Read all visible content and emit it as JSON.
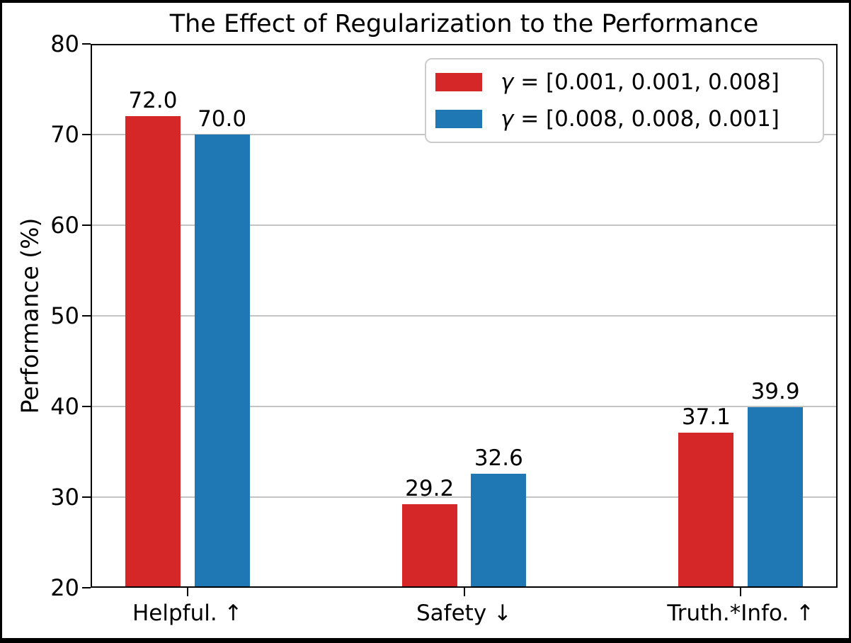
{
  "chart_data": {
    "type": "bar",
    "title": "The Effect of Regularization to the Performance",
    "ylabel": "Performance (%)",
    "xlabel": "",
    "categories": [
      "Helpful. ↑",
      "Safety ↓",
      "Truth.*Info. ↑"
    ],
    "series": [
      {
        "name": "γ = [0.001, 0.001, 0.008]",
        "legend_symbol": "γ",
        "legend_rest": " = [0.001, 0.001, 0.008]",
        "color": "#d62728",
        "values": [
          72.0,
          29.2,
          37.1
        ],
        "value_labels": [
          "72.0",
          "29.2",
          "37.1"
        ]
      },
      {
        "name": "γ = [0.008, 0.008, 0.001]",
        "legend_symbol": "γ",
        "legend_rest": " = [0.008, 0.008, 0.001]",
        "color": "#1f77b4",
        "values": [
          70.0,
          32.6,
          39.9
        ],
        "value_labels": [
          "70.0",
          "32.6",
          "39.9"
        ]
      }
    ],
    "ylim": [
      20,
      80
    ],
    "yticks": [
      20,
      30,
      40,
      50,
      60,
      70,
      80
    ],
    "xlim": [
      -0.35,
      2.35
    ],
    "bar_width": 0.2,
    "bar_offsets": [
      -0.125,
      0.125
    ],
    "grid": true,
    "grid_color": "#c4c4c4",
    "legend_position": "upper right"
  }
}
